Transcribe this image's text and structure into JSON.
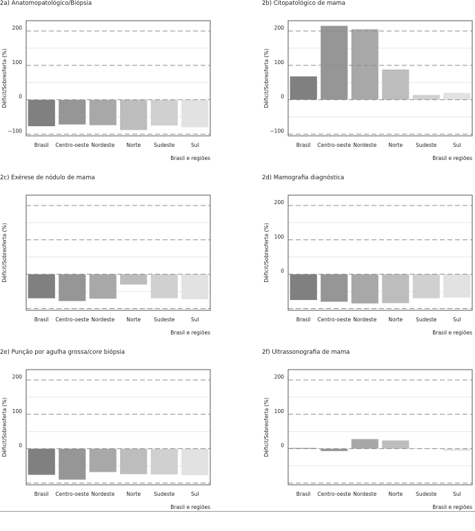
{
  "chart_data": [
    {
      "type": "bar",
      "id": "2a",
      "title": "2a) Anatomopatológico/Biópsia",
      "title_parts": [
        "2a) Anatomopatológico/Biópsia"
      ],
      "categories": [
        "Brasil",
        "Centro-oeste",
        "Nordeste",
        "Norte",
        "Sudeste",
        "Sul"
      ],
      "values": [
        -77,
        -72,
        -74,
        -88,
        -75,
        -80
      ],
      "ylabel": "Déficit/Sobreoferta (%)",
      "xlabel": "Brasil e regiões",
      "ylim": [
        -105,
        230
      ],
      "yticks": [
        200,
        100,
        0,
        -100
      ],
      "ytick_labels": [
        "200",
        "100",
        "0",
        "−100"
      ],
      "grid": true
    },
    {
      "type": "bar",
      "id": "2b",
      "title": "2b) Citopatológico de mama",
      "title_parts": [
        "2b) Citopatológico de mama"
      ],
      "categories": [
        "Brasil",
        "Centro-oeste",
        "Nordeste",
        "Norte",
        "Sudeste",
        "Sul"
      ],
      "values": [
        68,
        215,
        205,
        88,
        14,
        20
      ],
      "ylabel": "Déficit/Sobreoferta (%)",
      "xlabel": "Brasil e regiões",
      "ylim": [
        -105,
        230
      ],
      "yticks": [
        200,
        100,
        0,
        -100
      ],
      "ytick_labels": [
        "200",
        "100",
        "0",
        "−100"
      ],
      "grid": true
    },
    {
      "type": "bar",
      "id": "2c",
      "title": "2c) Exérese de nódulo de mama",
      "title_parts": [
        "2c) Exérese de nódulo de mama"
      ],
      "categories": [
        "Brasil",
        "Centro-oeste",
        "Nordeste",
        "Norte",
        "Sudeste",
        "Sul"
      ],
      "values": [
        -70,
        -78,
        -71,
        -30,
        -70,
        -73
      ],
      "ylabel": "Déficit/Sobreoferta (%)",
      "xlabel": "Brasil e regiões",
      "ylim": [
        -105,
        230
      ],
      "yticks": [
        200,
        100,
        0,
        -100
      ],
      "ytick_labels": [
        "",
        "",
        "",
        ""
      ],
      "grid": true
    },
    {
      "type": "bar",
      "id": "2d",
      "title": "2d) Mamografia diagnóstica",
      "title_parts": [
        "2d) Mamografia diagnóstica"
      ],
      "categories": [
        "Brasil",
        "Centro-oeste",
        "Nordeste",
        "Norte",
        "Sudeste",
        "Sul"
      ],
      "values": [
        -75,
        -80,
        -85,
        -84,
        -70,
        -68
      ],
      "ylabel": "Déficit/Sobreoferta (%)",
      "xlabel": "Brasil e regiões",
      "ylim": [
        -105,
        230
      ],
      "yticks": [
        200,
        100,
        0,
        -100
      ],
      "ytick_labels": [
        "200",
        "100",
        "0",
        ""
      ],
      "grid": true
    },
    {
      "type": "bar",
      "id": "2e",
      "title": "2e) Punção por agulha grossa/core biópsia",
      "title_parts": [
        "2e) Punção por agulha grossa/",
        "core",
        " biópsia"
      ],
      "categories": [
        "Brasil",
        "Centro-oeste",
        "Nordeste",
        "Norte",
        "Sudeste",
        "Sul"
      ],
      "values": [
        -76,
        -90,
        -68,
        -74,
        -75,
        -77
      ],
      "ylabel": "Déficit/Sobreoferta (%)",
      "xlabel": "Brasil e regiões",
      "ylim": [
        -105,
        230
      ],
      "yticks": [
        200,
        100,
        0,
        -100
      ],
      "ytick_labels": [
        "200",
        "100",
        "0",
        ""
      ],
      "grid": true
    },
    {
      "type": "bar",
      "id": "2f",
      "title": "2f) Ultrassonografia de mama",
      "title_parts": [
        "2f) Ultrassonografia de mama"
      ],
      "categories": [
        "Brasil",
        "Centro-oeste",
        "Nordeste",
        "Norte",
        "Sudeste",
        "Sul"
      ],
      "values": [
        2,
        -7,
        28,
        24,
        1,
        -6
      ],
      "ylabel": "Déficit/Sobreoferta (%)",
      "xlabel": "Brasil e regiões",
      "ylim": [
        -105,
        230
      ],
      "yticks": [
        200,
        100,
        0,
        -100
      ],
      "ytick_labels": [
        "200",
        "100",
        "0",
        ""
      ],
      "grid": true
    }
  ],
  "bar_colors": [
    "#808080",
    "#969696",
    "#a8a8a8",
    "#bdbdbd",
    "#d0d0d0",
    "#e2e2e2"
  ],
  "gridline_color": "#e6e6e6",
  "dash_color": "#8c8c8c"
}
